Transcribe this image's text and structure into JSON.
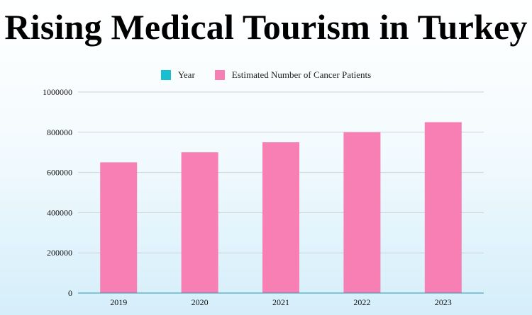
{
  "title": "Rising Medical Tourism in Turkey",
  "legend": {
    "items": [
      {
        "label": "Year",
        "color": "#17bfd1"
      },
      {
        "label": "Estimated Number of Cancer Patients",
        "color": "#f77fb3"
      }
    ]
  },
  "chart_data": {
    "type": "bar",
    "title": "Rising Medical Tourism in Turkey",
    "xlabel": "",
    "ylabel": "",
    "categories": [
      "2019",
      "2020",
      "2021",
      "2022",
      "2023"
    ],
    "series": [
      {
        "name": "Estimated Number of Cancer Patients",
        "values": [
          650000,
          700000,
          750000,
          800000,
          850000
        ],
        "color": "#f77fb3"
      }
    ],
    "ylim": [
      0,
      1000000
    ],
    "yticks": [
      0,
      200000,
      400000,
      600000,
      800000,
      1000000
    ],
    "grid": true,
    "legend_position": "top"
  }
}
